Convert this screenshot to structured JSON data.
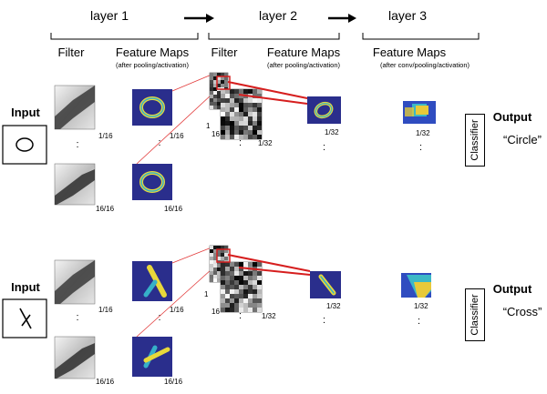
{
  "header": {
    "layer1": "layer 1",
    "layer2": "layer 2",
    "layer3": "layer 3"
  },
  "columns": {
    "filter_l1": "Filter",
    "fmaps_l1": "Feature Maps",
    "fmaps_l1_sub": "(after pooling/activation)",
    "filter_l2": "Filter",
    "fmaps_l2": "Feature Maps",
    "fmaps_l2_sub": "(after pooling/activation)",
    "fmaps_l3": "Feature Maps",
    "fmaps_l3_sub": "(after conv/pooling/activation)"
  },
  "rows": [
    {
      "input_label": "Input",
      "output_label": "Output",
      "output_value": "“Circle”",
      "classifier": "Classifier",
      "filter_first_index": "1/16",
      "filter_last_index": "16/16",
      "fmap_first_index": "1/16",
      "fmap_last_index": "16/16",
      "l2_filter_index": "1",
      "l2_filter_total": "16",
      "l2_fmap_index": "1/32",
      "l2_fmap_last": "1/32",
      "l3_fmap_index": "1/32",
      "input_shape": "circle",
      "fmap_shape": "ring"
    },
    {
      "input_label": "Input",
      "output_label": "Output",
      "output_value": "“Cross”",
      "classifier": "Classifier",
      "filter_first_index": "1/16",
      "filter_last_index": "16/16",
      "fmap_first_index": "1/16",
      "fmap_last_index": "16/16",
      "l2_filter_index": "1",
      "l2_filter_total": "16",
      "l2_fmap_index": "1/32",
      "l2_fmap_last": "1/32",
      "l3_fmap_index": "1/32",
      "input_shape": "cross",
      "fmap_shape": "cross"
    }
  ],
  "ellipsis": ":",
  "colors": {
    "fmap_background": "#2a2e8c",
    "fmap_ring": "#e8d83a",
    "fmap_ring_inner": "#36b0c8",
    "l3_high": "#e8c93a",
    "l3_mid": "#3cb8c6",
    "connector_thin": "#e23a3a",
    "connector_thick": "#d61e1e",
    "arrow": "#000000"
  },
  "icons": [
    "right-arrow-icon",
    "circle-input-icon",
    "cross-input-icon"
  ]
}
